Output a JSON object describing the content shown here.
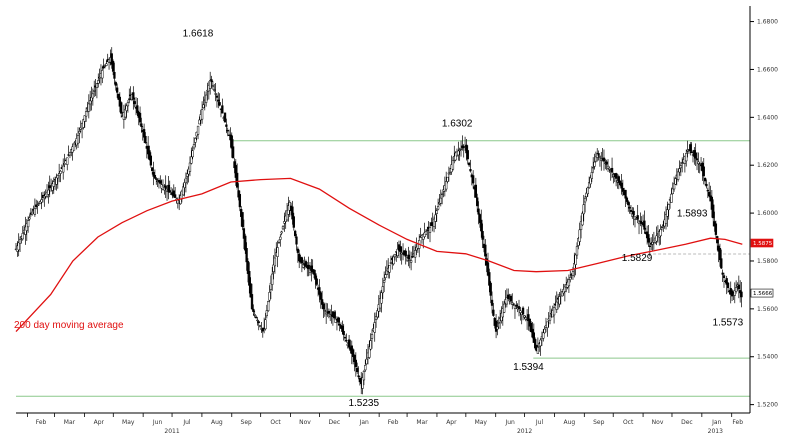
{
  "chart_data": {
    "type": "line",
    "subtype": "candlestick price chart with moving average",
    "ylim": [
      1.5165,
      1.6865
    ],
    "y_ticks": [
      "1.6800",
      "1.6600",
      "1.6400",
      "1.6200",
      "1.6000",
      "1.5800",
      "1.5600",
      "1.5400",
      "1.5200"
    ],
    "x_month_labels": [
      {
        "label": "Feb",
        "date": "2011-02-01"
      },
      {
        "label": "Mar",
        "date": "2011-03-01"
      },
      {
        "label": "Apr",
        "date": "2011-04-01"
      },
      {
        "label": "May",
        "date": "2011-05-01"
      },
      {
        "label": "Jun",
        "date": "2011-06-01"
      },
      {
        "label": "Jul",
        "date": "2011-07-01"
      },
      {
        "label": "Aug",
        "date": "2011-08-01"
      },
      {
        "label": "Sep",
        "date": "2011-09-01"
      },
      {
        "label": "Oct",
        "date": "2011-10-01"
      },
      {
        "label": "Nov",
        "date": "2011-11-01"
      },
      {
        "label": "Dec",
        "date": "2011-12-01"
      },
      {
        "label": "Jan",
        "date": "2012-01-01"
      },
      {
        "label": "Feb",
        "date": "2012-02-01"
      },
      {
        "label": "Mar",
        "date": "2012-03-01"
      },
      {
        "label": "Apr",
        "date": "2012-04-01"
      },
      {
        "label": "May",
        "date": "2012-05-01"
      },
      {
        "label": "Jun",
        "date": "2012-06-01"
      },
      {
        "label": "Jul",
        "date": "2012-07-01"
      },
      {
        "label": "Aug",
        "date": "2012-08-01"
      },
      {
        "label": "Sep",
        "date": "2012-09-01"
      },
      {
        "label": "Oct",
        "date": "2012-10-01"
      },
      {
        "label": "Nov",
        "date": "2012-11-01"
      },
      {
        "label": "Dec",
        "date": "2012-12-01"
      },
      {
        "label": "Jan",
        "date": "2013-01-01"
      },
      {
        "label": "Feb",
        "date": "2013-02-01"
      }
    ],
    "x_year_labels": [
      {
        "label": "2011",
        "date": "2011-07-01"
      },
      {
        "label": "2012",
        "date": "2012-07-01"
      },
      {
        "label": "2013",
        "date": "2013-01-15"
      }
    ],
    "price_series": {
      "name": "",
      "x": [
        "2011-01-20",
        "2011-02-05",
        "2011-02-20",
        "2011-03-08",
        "2011-03-25",
        "2011-04-05",
        "2011-04-20",
        "2011-04-28",
        "2011-05-10",
        "2011-05-20",
        "2011-05-31",
        "2011-06-12",
        "2011-06-25",
        "2011-07-08",
        "2011-07-18",
        "2011-07-30",
        "2011-08-10",
        "2011-08-22",
        "2011-08-31",
        "2011-09-12",
        "2011-09-22",
        "2011-10-04",
        "2011-10-15",
        "2011-10-31",
        "2011-11-10",
        "2011-11-25",
        "2011-12-05",
        "2011-12-20",
        "2012-01-05",
        "2012-01-13",
        "2012-01-25",
        "2012-02-08",
        "2012-02-20",
        "2012-03-05",
        "2012-03-15",
        "2012-03-27",
        "2012-04-08",
        "2012-04-20",
        "2012-04-30",
        "2012-05-10",
        "2012-05-22",
        "2012-06-01",
        "2012-06-12",
        "2012-06-25",
        "2012-07-05",
        "2012-07-13",
        "2012-07-25",
        "2012-08-06",
        "2012-08-20",
        "2012-09-01",
        "2012-09-14",
        "2012-09-25",
        "2012-10-08",
        "2012-10-20",
        "2012-11-01",
        "2012-11-08",
        "2012-11-22",
        "2012-12-05",
        "2012-12-18",
        "2012-12-31",
        "2013-01-10",
        "2013-01-22",
        "2013-02-01",
        "2013-02-07",
        "2013-02-12"
      ],
      "values": [
        1.585,
        1.6,
        1.608,
        1.618,
        1.632,
        1.645,
        1.66,
        1.665,
        1.64,
        1.65,
        1.635,
        1.615,
        1.61,
        1.605,
        1.618,
        1.64,
        1.656,
        1.642,
        1.63,
        1.595,
        1.56,
        1.55,
        1.58,
        1.605,
        1.58,
        1.575,
        1.56,
        1.555,
        1.54,
        1.528,
        1.55,
        1.575,
        1.585,
        1.58,
        1.59,
        1.595,
        1.61,
        1.625,
        1.628,
        1.61,
        1.58,
        1.55,
        1.565,
        1.56,
        1.555,
        1.542,
        1.555,
        1.565,
        1.575,
        1.605,
        1.625,
        1.62,
        1.612,
        1.6,
        1.595,
        1.586,
        1.595,
        1.615,
        1.627,
        1.62,
        1.605,
        1.575,
        1.565,
        1.57,
        1.564
      ],
      "color": "#000000"
    },
    "moving_average": {
      "name": "200 day moving average",
      "x": [
        "2011-01-20",
        "2011-02-25",
        "2011-03-20",
        "2011-04-15",
        "2011-05-10",
        "2011-06-05",
        "2011-07-01",
        "2011-08-01",
        "2011-08-31",
        "2011-10-01",
        "2011-11-01",
        "2011-12-01",
        "2012-01-01",
        "2012-02-01",
        "2012-03-01",
        "2012-04-01",
        "2012-05-01",
        "2012-05-25",
        "2012-06-20",
        "2012-07-13",
        "2012-08-15",
        "2012-09-15",
        "2012-10-15",
        "2012-11-15",
        "2012-12-15",
        "2013-01-10",
        "2013-01-25",
        "2013-02-12"
      ],
      "values": [
        1.5505,
        1.566,
        1.58,
        1.59,
        1.596,
        1.601,
        1.605,
        1.608,
        1.613,
        1.614,
        1.6145,
        1.61,
        1.602,
        1.595,
        1.589,
        1.584,
        1.583,
        1.58,
        1.576,
        1.5755,
        1.576,
        1.579,
        1.582,
        1.5845,
        1.587,
        1.5895,
        1.589,
        1.587
      ],
      "color": "#e01010"
    },
    "horizontal_levels": [
      {
        "value": 1.6302,
        "x_start": "2011-09-01",
        "x_end": "2013-02-20",
        "color": "#8cc88c"
      },
      {
        "value": 1.5235,
        "x_start": "2011-01-20",
        "x_end": "2013-02-20",
        "color": "#8cc88c"
      },
      {
        "value": 1.5394,
        "x_start": "2012-07-10",
        "x_end": "2013-02-20",
        "color": "#8cc88c"
      },
      {
        "value": 1.5829,
        "x_start": "2012-11-01",
        "x_end": "2013-02-20",
        "color": "#bbbbbb",
        "dashed": true
      }
    ],
    "annotations": [
      {
        "text": "1.6618",
        "date": "2011-07-30"
      },
      {
        "text": "1.6302",
        "date": "2012-04-22"
      },
      {
        "text": "1.5235",
        "date": "2012-01-16"
      },
      {
        "text": "1.5394",
        "date": "2012-07-05"
      },
      {
        "text": "1.5829",
        "date": "2012-11-01"
      },
      {
        "text": "1.5893",
        "date": "2012-12-22"
      },
      {
        "text": "1.5573",
        "date": "2013-01-28"
      }
    ],
    "axis_tags": [
      {
        "text": "1.5875",
        "value": 1.5875,
        "style": "red"
      },
      {
        "text": "1.5666",
        "value": 1.5666,
        "style": "outline"
      }
    ],
    "legend_labels": [
      {
        "text": "200 day moving average",
        "color": "#e01010"
      }
    ],
    "y_axis_side": "right"
  }
}
